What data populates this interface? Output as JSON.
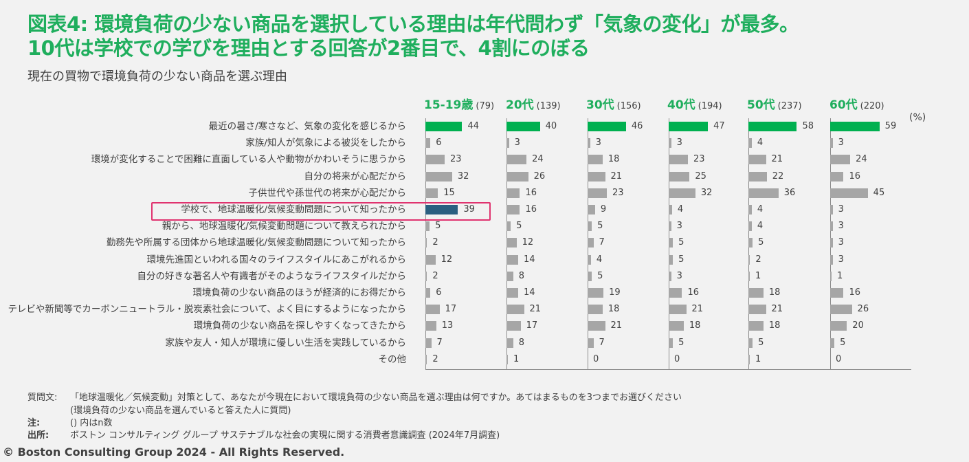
{
  "title": {
    "line1": "図表4: 環境負荷の少ない商品を選択している理由は年代問わず「気象の変化」が最多。",
    "line2": "10代は学校での学びを理由とする回答が2番目で、4割にのぼる"
  },
  "subtitle": "現在の買物で環境負荷の少ない商品を選ぶ理由",
  "unit_label": "(%)",
  "colors": {
    "top_reason": "#00b050",
    "highlight": "#2a5f80",
    "default": "#a6a6a6",
    "highlight_box": "#e0336f",
    "title": "#1fae5d"
  },
  "chart_data": {
    "type": "bar",
    "orientation": "horizontal",
    "unit": "%",
    "categories": [
      "最近の暑さ/寒さなど、気象の変化を感じるから",
      "家族/知人が気象による被災をしたから",
      "環境が変化することで困難に直面している人や動物がかわいそうに思うから",
      "自分の将来が心配だから",
      "子供世代や孫世代の将来が心配だから",
      "学校で、地球温暖化/気候変動問題について知ったから",
      "親から、地球温暖化/気候変動問題について教えられたから",
      "勤務先や所属する団体から地球温暖化/気候変動問題について知ったから",
      "環境先進国といわれる国々のライフスタイルにあこがれるから",
      "自分の好きな著名人や有識者がそのようなライフスタイルだから",
      "環境負荷の少ない商品のほうが経済的にお得だから",
      "テレビや新聞等でカーボンニュートラル・脱炭素社会について、よく目にするようになったから",
      "環境負荷の少ない商品を探しやすくなってきたから",
      "家族や友人・知人が環境に優しい生活を実践しているから",
      "その他"
    ],
    "highlighted_category": "学校で、地球温暖化/気候変動問題について知ったから",
    "series": [
      {
        "name": "15-19歳",
        "n": "(79)",
        "values": [
          44,
          6,
          23,
          32,
          15,
          39,
          5,
          2,
          12,
          2,
          6,
          17,
          13,
          7,
          2
        ]
      },
      {
        "name": "20代",
        "n": "(139)",
        "values": [
          40,
          3,
          24,
          26,
          16,
          16,
          5,
          12,
          14,
          8,
          14,
          21,
          17,
          8,
          1
        ]
      },
      {
        "name": "30代",
        "n": "(156)",
        "values": [
          46,
          3,
          18,
          21,
          23,
          9,
          5,
          7,
          4,
          5,
          19,
          18,
          21,
          7,
          0
        ]
      },
      {
        "name": "40代",
        "n": "(194)",
        "values": [
          47,
          3,
          23,
          25,
          32,
          4,
          3,
          5,
          5,
          3,
          16,
          21,
          18,
          5,
          0
        ]
      },
      {
        "name": "50代",
        "n": "(237)",
        "values": [
          58,
          4,
          21,
          22,
          36,
          4,
          4,
          5,
          2,
          1,
          18,
          21,
          18,
          5,
          1
        ]
      },
      {
        "name": "60代",
        "n": "(220)",
        "values": [
          59,
          3,
          24,
          16,
          45,
          3,
          3,
          3,
          3,
          1,
          16,
          26,
          20,
          5,
          0
        ]
      }
    ]
  },
  "footer": {
    "question_key": "質問文:",
    "question": "「地球温暖化／気候変動」対策として、あなたが今現在において環境負荷の少ない商品を選ぶ理由は何ですか。あてはまるものを3つまでお選びください",
    "question_sub": "(環境負荷の少ない商品を選んでいると答えた人に質問)",
    "note_key": "注:",
    "note": "() 内はn数",
    "source_key": "出所:",
    "source": "ボストン コンサルティング グループ サステナブルな社会の実現に関する消費者意識調査 (2024年7月調査)",
    "copyright": "© Boston Consulting Group 2024 - All Rights Reserved."
  }
}
